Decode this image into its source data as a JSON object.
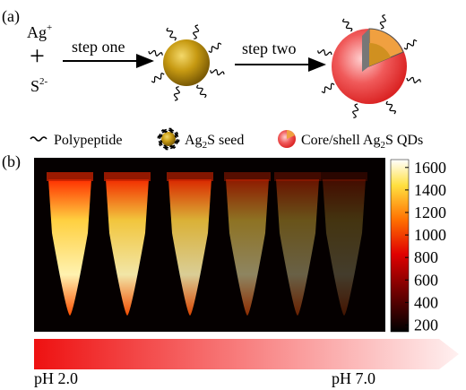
{
  "panel_a": {
    "label": "(a)",
    "reactant_1": [
      "Ag",
      "+"
    ],
    "plus": "+",
    "reactant_2": [
      "S",
      "2-"
    ],
    "step_one": "step one",
    "step_two": "step two",
    "legend": {
      "polypeptide": "Polypeptide",
      "seed": [
        "Ag",
        "2",
        "S seed"
      ],
      "core_shell": [
        "Core/shell Ag",
        "2",
        "S QDs"
      ]
    }
  },
  "panel_b": {
    "label": "(b)",
    "colorbar": {
      "lim": [
        140,
        1670
      ],
      "ticks": [
        1600,
        1400,
        1200,
        1000,
        800,
        600,
        400,
        200
      ]
    },
    "ph_start": "pH 2.0",
    "ph_end": "pH 7.0"
  }
}
